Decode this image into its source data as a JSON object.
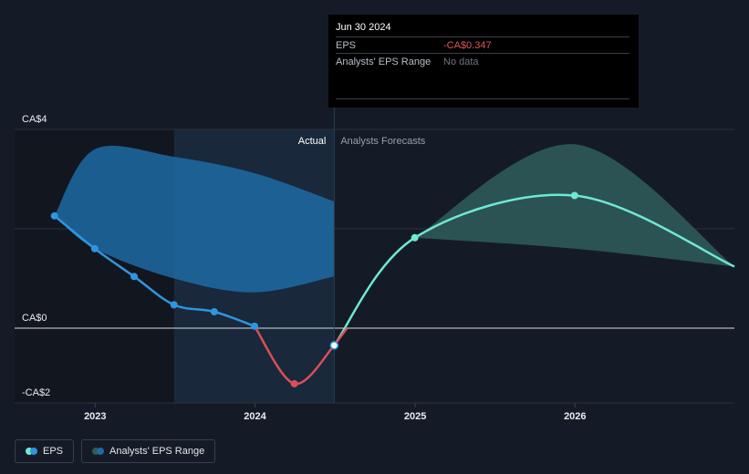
{
  "tooltip": {
    "date": "Jun 30 2024",
    "rows": [
      {
        "label": "EPS",
        "value": "-CA$0.347"
      },
      {
        "label": "Analysts' EPS Range",
        "value": "No data"
      }
    ]
  },
  "regions": {
    "actual": "Actual",
    "forecast": "Analysts Forecasts"
  },
  "legend": [
    {
      "label": "EPS"
    },
    {
      "label": "Analysts' EPS Range"
    }
  ],
  "colors": {
    "eps_line": "#2f95e0",
    "eps_negative": "#d94f58",
    "forecast_line": "#6fe8d4",
    "forecast_range": "#2e5a5a",
    "actual_range": "#1f6aa5",
    "negative_value": "#e05757"
  },
  "chart_data": {
    "type": "line",
    "x_ticks": [
      "2023",
      "2024",
      "2025",
      "2026"
    ],
    "y_ticks": [
      {
        "value": 4,
        "label": "CA$4"
      },
      {
        "value": 0,
        "label": "CA$0"
      },
      {
        "value": -2,
        "label": "-CA$2"
      }
    ],
    "ylim": [
      -2,
      4
    ],
    "xlim": [
      "2022-07-01",
      "2026-12-31"
    ],
    "series": [
      {
        "name": "EPS",
        "points": [
          {
            "date": "2022-09-30",
            "value": 2.26
          },
          {
            "date": "2022-12-31",
            "value": 1.6
          },
          {
            "date": "2023-03-31",
            "value": 1.04
          },
          {
            "date": "2023-06-30",
            "value": 0.47
          },
          {
            "date": "2023-09-30",
            "value": 0.33
          },
          {
            "date": "2023-12-31",
            "value": 0.04
          },
          {
            "date": "2024-03-31",
            "value": -1.12
          },
          {
            "date": "2024-06-30",
            "value": -0.347
          }
        ]
      },
      {
        "name": "Analysts Forecasts",
        "points": [
          {
            "date": "2024-06-30",
            "value": -0.347
          },
          {
            "date": "2024-12-31",
            "value": 1.82
          },
          {
            "date": "2025-12-31",
            "value": 2.67
          },
          {
            "date": "2026-12-31",
            "value": 1.24
          }
        ]
      }
    ],
    "ranges": [
      {
        "name": "Analysts' EPS Range (past)",
        "points": [
          {
            "date": "2022-09-30",
            "low": 2.26,
            "high": 2.26
          },
          {
            "date": "2022-12-31",
            "low": 1.6,
            "high": 3.6
          },
          {
            "date": "2023-06-30",
            "low": 1.0,
            "high": 3.45
          },
          {
            "date": "2023-12-31",
            "low": 0.72,
            "high": 3.12
          },
          {
            "date": "2024-06-30",
            "low": 1.04,
            "high": 2.55
          }
        ]
      },
      {
        "name": "Analysts' EPS Range",
        "points": [
          {
            "date": "2024-12-31",
            "low": 1.82,
            "high": 1.82
          },
          {
            "date": "2025-12-31",
            "low": 1.6,
            "high": 3.7
          },
          {
            "date": "2026-12-31",
            "low": 1.24,
            "high": 1.24
          }
        ]
      }
    ],
    "highlight_date": "2024-06-30",
    "legend_position": "bottom-left",
    "grid": true
  }
}
